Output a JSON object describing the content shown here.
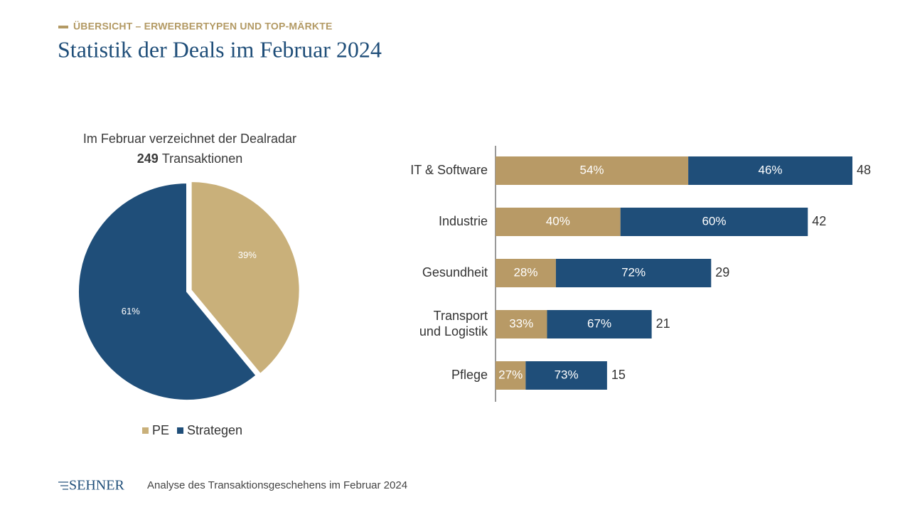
{
  "header": {
    "kicker": "ÜBERSICHT – ERWERBERTYPEN UND TOP-MÄRKTE",
    "title": "Statistik der Deals im Februar 2024"
  },
  "chart_data": [
    {
      "type": "pie",
      "subtitle": "Im Februar verzeichnet der Dealradar",
      "total": "249",
      "total_text": "Transaktionen",
      "categories": [
        "PE",
        "Strategen"
      ],
      "values": [
        39,
        61
      ],
      "value_labels": [
        "39%",
        "61%"
      ],
      "colors": [
        "#c9b07a",
        "#1f4e79"
      ],
      "legend": "bottom"
    },
    {
      "type": "stacked-bar-horizontal",
      "categories": [
        "IT & Software",
        "Industrie",
        "Gesundheit",
        "Transport\nund Logistik",
        "Pflege"
      ],
      "values": [
        48,
        42,
        29,
        21,
        15
      ],
      "series": [
        {
          "color": "#b89a66",
          "values": [
            54,
            40,
            28,
            33,
            27
          ],
          "value_labels": [
            "54%",
            "40%",
            "28%",
            "33%",
            "27%"
          ]
        },
        {
          "color": "#1f4e79",
          "values": [
            46,
            60,
            72,
            67,
            73
          ],
          "value_labels": [
            "46%",
            "60%",
            "72%",
            "67%",
            "73%"
          ]
        }
      ]
    }
  ],
  "footer": {
    "logo": "SEHNER",
    "text": "Analyse des Transaktionsgeschehens im Februar 2024"
  }
}
